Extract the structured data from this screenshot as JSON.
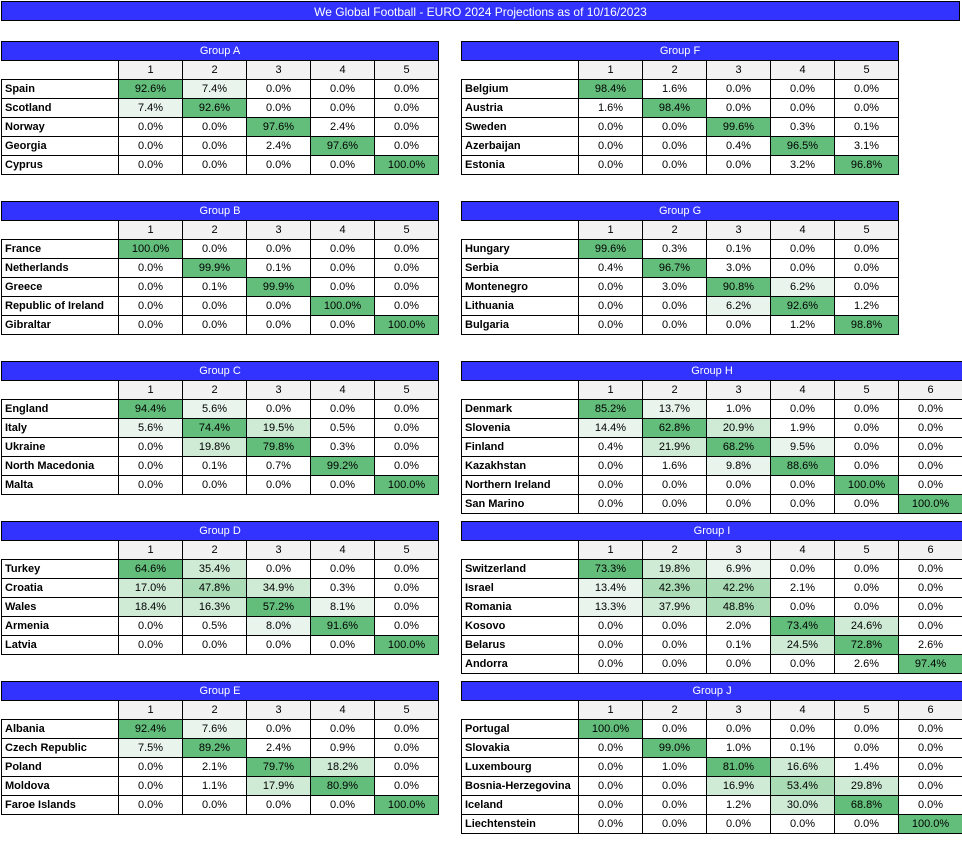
{
  "title": "We Global Football - EURO 2024 Projections as of 10/16/2023",
  "groups": [
    {
      "name": "Group A",
      "columns": [
        "1",
        "2",
        "3",
        "4",
        "5"
      ],
      "rows": [
        {
          "team": "Spain",
          "values": [
            "92.6%",
            "7.4%",
            "0.0%",
            "0.0%",
            "0.0%"
          ]
        },
        {
          "team": "Scotland",
          "values": [
            "7.4%",
            "92.6%",
            "0.0%",
            "0.0%",
            "0.0%"
          ]
        },
        {
          "team": "Norway",
          "values": [
            "0.0%",
            "0.0%",
            "97.6%",
            "2.4%",
            "0.0%"
          ]
        },
        {
          "team": "Georgia",
          "values": [
            "0.0%",
            "0.0%",
            "2.4%",
            "97.6%",
            "0.0%"
          ]
        },
        {
          "team": "Cyprus",
          "values": [
            "0.0%",
            "0.0%",
            "0.0%",
            "0.0%",
            "100.0%"
          ]
        }
      ]
    },
    {
      "name": "Group B",
      "columns": [
        "1",
        "2",
        "3",
        "4",
        "5"
      ],
      "rows": [
        {
          "team": "France",
          "values": [
            "100.0%",
            "0.0%",
            "0.0%",
            "0.0%",
            "0.0%"
          ]
        },
        {
          "team": "Netherlands",
          "values": [
            "0.0%",
            "99.9%",
            "0.1%",
            "0.0%",
            "0.0%"
          ]
        },
        {
          "team": "Greece",
          "values": [
            "0.0%",
            "0.1%",
            "99.9%",
            "0.0%",
            "0.0%"
          ]
        },
        {
          "team": "Republic of Ireland",
          "values": [
            "0.0%",
            "0.0%",
            "0.0%",
            "100.0%",
            "0.0%"
          ]
        },
        {
          "team": "Gibraltar",
          "values": [
            "0.0%",
            "0.0%",
            "0.0%",
            "0.0%",
            "100.0%"
          ]
        }
      ]
    },
    {
      "name": "Group C",
      "columns": [
        "1",
        "2",
        "3",
        "4",
        "5"
      ],
      "rows": [
        {
          "team": "England",
          "values": [
            "94.4%",
            "5.6%",
            "0.0%",
            "0.0%",
            "0.0%"
          ]
        },
        {
          "team": "Italy",
          "values": [
            "5.6%",
            "74.4%",
            "19.5%",
            "0.5%",
            "0.0%"
          ]
        },
        {
          "team": "Ukraine",
          "values": [
            "0.0%",
            "19.8%",
            "79.8%",
            "0.3%",
            "0.0%"
          ]
        },
        {
          "team": "North Macedonia",
          "values": [
            "0.0%",
            "0.1%",
            "0.7%",
            "99.2%",
            "0.0%"
          ]
        },
        {
          "team": "Malta",
          "values": [
            "0.0%",
            "0.0%",
            "0.0%",
            "0.0%",
            "100.0%"
          ]
        }
      ]
    },
    {
      "name": "Group D",
      "columns": [
        "1",
        "2",
        "3",
        "4",
        "5"
      ],
      "rows": [
        {
          "team": "Turkey",
          "values": [
            "64.6%",
            "35.4%",
            "0.0%",
            "0.0%",
            "0.0%"
          ]
        },
        {
          "team": "Croatia",
          "values": [
            "17.0%",
            "47.8%",
            "34.9%",
            "0.3%",
            "0.0%"
          ]
        },
        {
          "team": "Wales",
          "values": [
            "18.4%",
            "16.3%",
            "57.2%",
            "8.1%",
            "0.0%"
          ]
        },
        {
          "team": "Armenia",
          "values": [
            "0.0%",
            "0.5%",
            "8.0%",
            "91.6%",
            "0.0%"
          ]
        },
        {
          "team": "Latvia",
          "values": [
            "0.0%",
            "0.0%",
            "0.0%",
            "0.0%",
            "100.0%"
          ]
        }
      ]
    },
    {
      "name": "Group E",
      "columns": [
        "1",
        "2",
        "3",
        "4",
        "5"
      ],
      "rows": [
        {
          "team": "Albania",
          "values": [
            "92.4%",
            "7.6%",
            "0.0%",
            "0.0%",
            "0.0%"
          ]
        },
        {
          "team": "Czech Republic",
          "values": [
            "7.5%",
            "89.2%",
            "2.4%",
            "0.9%",
            "0.0%"
          ]
        },
        {
          "team": "Poland",
          "values": [
            "0.0%",
            "2.1%",
            "79.7%",
            "18.2%",
            "0.0%"
          ]
        },
        {
          "team": "Moldova",
          "values": [
            "0.0%",
            "1.1%",
            "17.9%",
            "80.9%",
            "0.0%"
          ]
        },
        {
          "team": "Faroe Islands",
          "values": [
            "0.0%",
            "0.0%",
            "0.0%",
            "0.0%",
            "100.0%"
          ]
        }
      ]
    },
    {
      "name": "Group F",
      "columns": [
        "1",
        "2",
        "3",
        "4",
        "5"
      ],
      "rows": [
        {
          "team": "Belgium",
          "values": [
            "98.4%",
            "1.6%",
            "0.0%",
            "0.0%",
            "0.0%"
          ]
        },
        {
          "team": "Austria",
          "values": [
            "1.6%",
            "98.4%",
            "0.0%",
            "0.0%",
            "0.0%"
          ]
        },
        {
          "team": "Sweden",
          "values": [
            "0.0%",
            "0.0%",
            "99.6%",
            "0.3%",
            "0.1%"
          ]
        },
        {
          "team": "Azerbaijan",
          "values": [
            "0.0%",
            "0.0%",
            "0.4%",
            "96.5%",
            "3.1%"
          ]
        },
        {
          "team": "Estonia",
          "values": [
            "0.0%",
            "0.0%",
            "0.0%",
            "3.2%",
            "96.8%"
          ]
        }
      ]
    },
    {
      "name": "Group G",
      "columns": [
        "1",
        "2",
        "3",
        "4",
        "5"
      ],
      "rows": [
        {
          "team": "Hungary",
          "values": [
            "99.6%",
            "0.3%",
            "0.1%",
            "0.0%",
            "0.0%"
          ]
        },
        {
          "team": "Serbia",
          "values": [
            "0.4%",
            "96.7%",
            "3.0%",
            "0.0%",
            "0.0%"
          ]
        },
        {
          "team": "Montenegro",
          "values": [
            "0.0%",
            "3.0%",
            "90.8%",
            "6.2%",
            "0.0%"
          ]
        },
        {
          "team": "Lithuania",
          "values": [
            "0.0%",
            "0.0%",
            "6.2%",
            "92.6%",
            "1.2%"
          ]
        },
        {
          "team": "Bulgaria",
          "values": [
            "0.0%",
            "0.0%",
            "0.0%",
            "1.2%",
            "98.8%"
          ]
        }
      ]
    },
    {
      "name": "Group H",
      "columns": [
        "1",
        "2",
        "3",
        "4",
        "5",
        "6"
      ],
      "rows": [
        {
          "team": "Denmark",
          "values": [
            "85.2%",
            "13.7%",
            "1.0%",
            "0.0%",
            "0.0%",
            "0.0%"
          ]
        },
        {
          "team": "Slovenia",
          "values": [
            "14.4%",
            "62.8%",
            "20.9%",
            "1.9%",
            "0.0%",
            "0.0%"
          ]
        },
        {
          "team": "Finland",
          "values": [
            "0.4%",
            "21.9%",
            "68.2%",
            "9.5%",
            "0.0%",
            "0.0%"
          ]
        },
        {
          "team": "Kazakhstan",
          "values": [
            "0.0%",
            "1.6%",
            "9.8%",
            "88.6%",
            "0.0%",
            "0.0%"
          ]
        },
        {
          "team": "Northern Ireland",
          "values": [
            "0.0%",
            "0.0%",
            "0.0%",
            "0.0%",
            "100.0%",
            "0.0%"
          ]
        },
        {
          "team": "San Marino",
          "values": [
            "0.0%",
            "0.0%",
            "0.0%",
            "0.0%",
            "0.0%",
            "100.0%"
          ]
        }
      ]
    },
    {
      "name": "Group I",
      "columns": [
        "1",
        "2",
        "3",
        "4",
        "5",
        "6"
      ],
      "rows": [
        {
          "team": "Switzerland",
          "values": [
            "73.3%",
            "19.8%",
            "6.9%",
            "0.0%",
            "0.0%",
            "0.0%"
          ]
        },
        {
          "team": "Israel",
          "values": [
            "13.4%",
            "42.3%",
            "42.2%",
            "2.1%",
            "0.0%",
            "0.0%"
          ]
        },
        {
          "team": "Romania",
          "values": [
            "13.3%",
            "37.9%",
            "48.8%",
            "0.0%",
            "0.0%",
            "0.0%"
          ]
        },
        {
          "team": "Kosovo",
          "values": [
            "0.0%",
            "0.0%",
            "2.0%",
            "73.4%",
            "24.6%",
            "0.0%"
          ]
        },
        {
          "team": "Belarus",
          "values": [
            "0.0%",
            "0.0%",
            "0.1%",
            "24.5%",
            "72.8%",
            "2.6%"
          ]
        },
        {
          "team": "Andorra",
          "values": [
            "0.0%",
            "0.0%",
            "0.0%",
            "0.0%",
            "2.6%",
            "97.4%"
          ]
        }
      ]
    },
    {
      "name": "Group J",
      "columns": [
        "1",
        "2",
        "3",
        "4",
        "5",
        "6"
      ],
      "rows": [
        {
          "team": "Portugal",
          "values": [
            "100.0%",
            "0.0%",
            "0.0%",
            "0.0%",
            "0.0%",
            "0.0%"
          ]
        },
        {
          "team": "Slovakia",
          "values": [
            "0.0%",
            "99.0%",
            "1.0%",
            "0.1%",
            "0.0%",
            "0.0%"
          ]
        },
        {
          "team": "Luxembourg",
          "values": [
            "0.0%",
            "1.0%",
            "81.0%",
            "16.6%",
            "1.4%",
            "0.0%"
          ]
        },
        {
          "team": "Bosnia-Herzegovina",
          "values": [
            "0.0%",
            "0.0%",
            "16.9%",
            "53.4%",
            "29.8%",
            "0.0%"
          ]
        },
        {
          "team": "Iceland",
          "values": [
            "0.0%",
            "0.0%",
            "1.2%",
            "30.0%",
            "68.8%",
            "0.0%"
          ]
        },
        {
          "team": "Liechtenstein",
          "values": [
            "0.0%",
            "0.0%",
            "0.0%",
            "0.0%",
            "0.0%",
            "100.0%"
          ]
        }
      ]
    }
  ]
}
